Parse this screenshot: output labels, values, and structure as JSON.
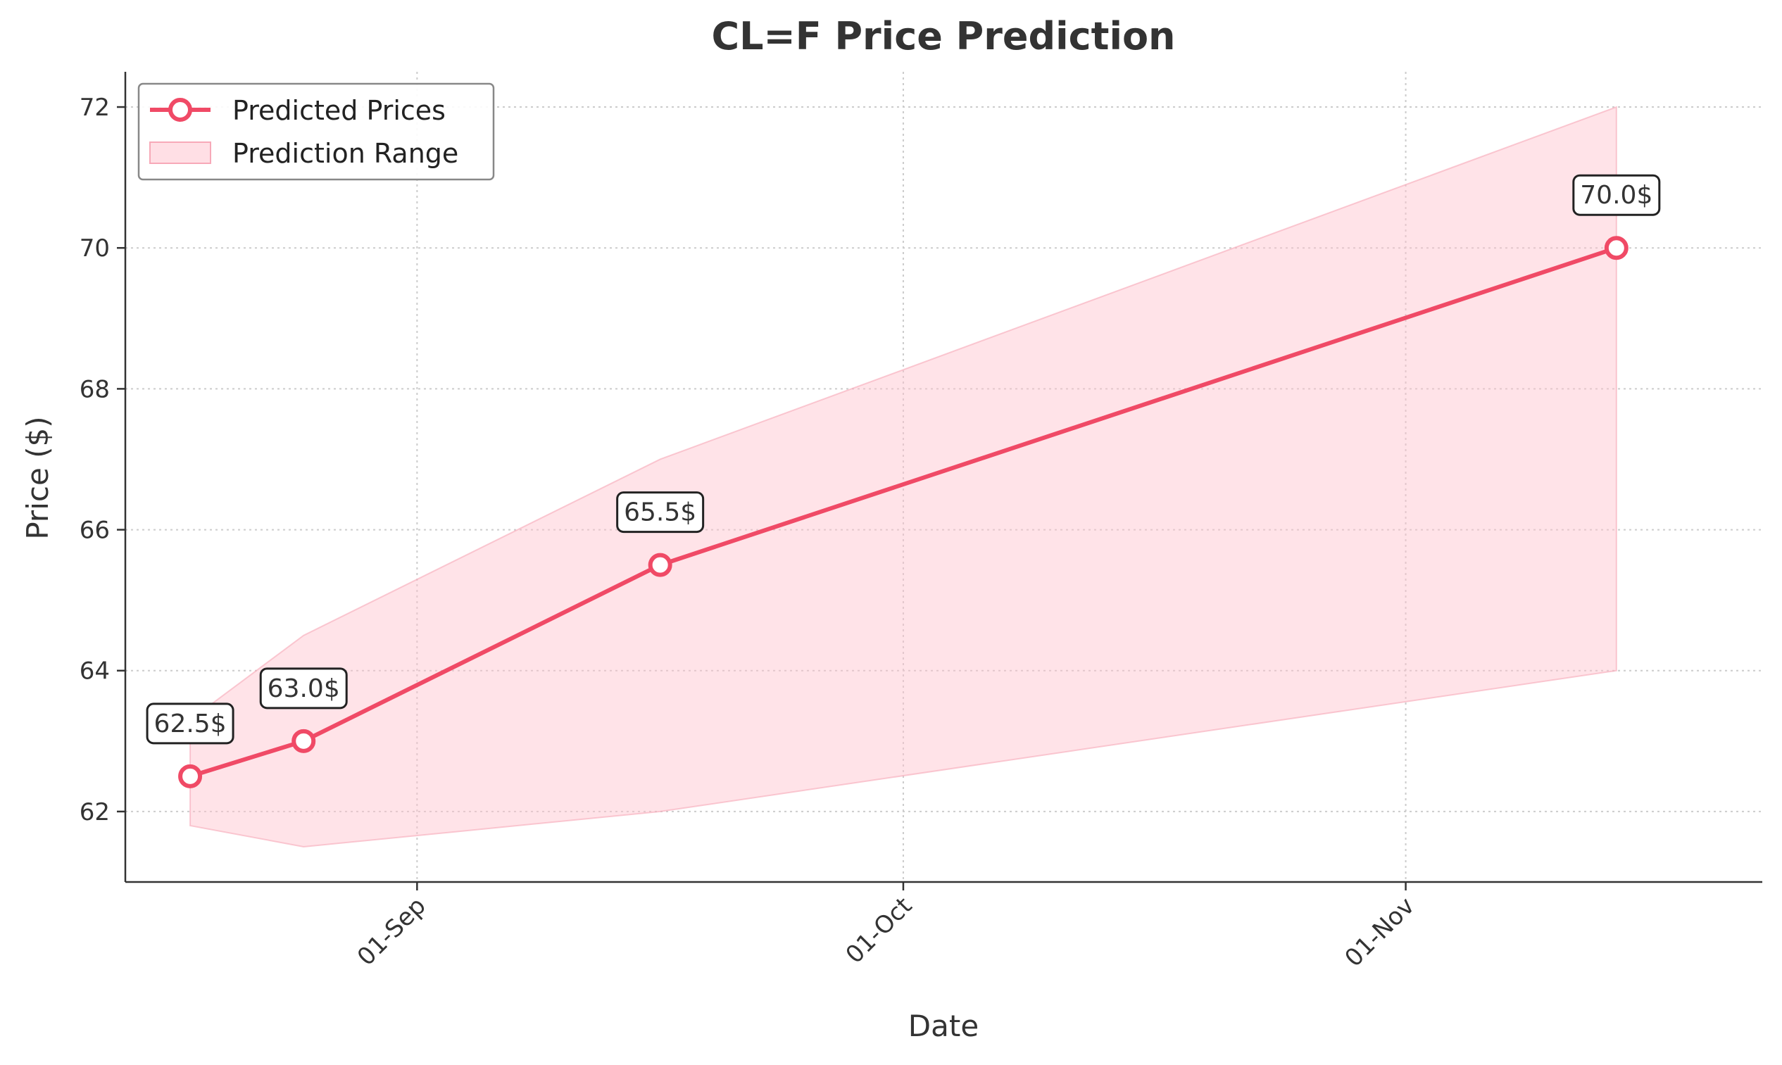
{
  "chart_data": {
    "type": "line",
    "title": "CL=F Price Prediction",
    "xlabel": "Date",
    "ylabel": "Price ($)",
    "x_dates": [
      "2025-08-18",
      "2025-08-25",
      "2025-09-16",
      "2025-11-14"
    ],
    "series": [
      {
        "name": "Predicted Prices",
        "values": [
          62.5,
          63.0,
          65.5,
          70.0
        ],
        "labels": [
          "62.5$",
          "63.0$",
          "65.5$",
          "70.0$"
        ],
        "color": "#f04a66"
      }
    ],
    "range": {
      "name": "Prediction Range",
      "lower": [
        61.8,
        61.5,
        62.0,
        64.0
      ],
      "upper": [
        63.3,
        64.5,
        67.0,
        72.0
      ],
      "color": "#ffc0cb"
    },
    "xticks": [
      {
        "date": "2025-09-01",
        "label": "01-Sep"
      },
      {
        "date": "2025-10-01",
        "label": "01-Oct"
      },
      {
        "date": "2025-11-01",
        "label": "01-Nov"
      }
    ],
    "yticks": [
      62,
      64,
      66,
      68,
      70,
      72
    ],
    "ylim": [
      61.0,
      72.5
    ],
    "xlim": [
      "2025-08-14",
      "2025-11-23"
    ],
    "grid": true,
    "legend_position": "top-left"
  }
}
